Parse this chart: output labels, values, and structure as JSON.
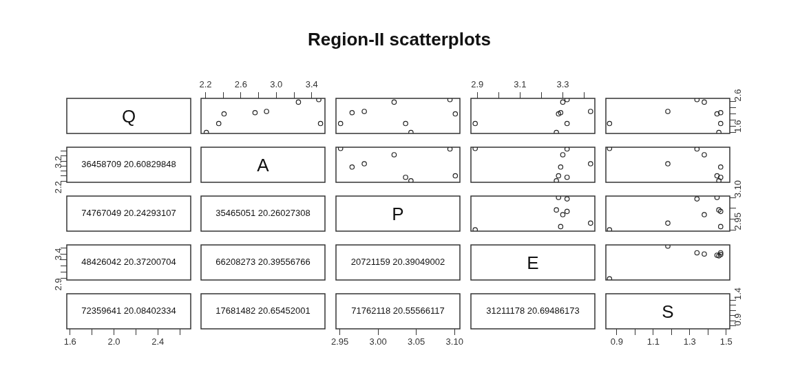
{
  "chart_data": [
    {
      "type": "other",
      "title": "Region-II scatterplots",
      "annotations": [
        "Q"
      ]
    },
    {
      "type": "scatter",
      "x": [
        2.21,
        2.35,
        2.41,
        2.76,
        2.89,
        3.25,
        3.48,
        3.5
      ],
      "values": [
        1.6,
        1.89,
        2.2,
        2.24,
        2.28,
        2.58,
        2.66,
        1.89
      ],
      "color": "#222222",
      "marker": "circle",
      "xlim": [
        2.15,
        3.55
      ],
      "ylim": [
        1.57,
        2.7
      ],
      "xticks": [
        2.2,
        {
          "value": 2.4,
          "label": null
        },
        2.6,
        {
          "value": 2.8,
          "label": null
        },
        {
          "value": 3,
          "label": "3.0"
        },
        {
          "value": 3.2,
          "label": null
        },
        3.4
      ],
      "tick_labels": "x"
    },
    {
      "type": "scatter",
      "x": [
        3.043,
        3.036,
        3.101,
        2.966,
        2.982,
        3.021,
        3.094,
        2.951
      ],
      "values": [
        1.6,
        1.89,
        2.2,
        2.24,
        2.28,
        2.58,
        2.66,
        1.89
      ],
      "color": "#222222",
      "marker": "circle",
      "xlim": [
        2.945,
        3.107
      ],
      "ylim": [
        1.57,
        2.7
      ],
      "tick_labels": false
    },
    {
      "type": "scatter",
      "x": [
        3.27,
        3.32,
        3.28,
        3.29,
        3.43,
        3.3,
        3.32,
        2.89
      ],
      "values": [
        1.6,
        1.89,
        2.2,
        2.24,
        2.28,
        2.58,
        2.66,
        1.89
      ],
      "color": "#222222",
      "marker": "circle",
      "xlim": [
        2.87,
        3.45
      ],
      "ylim": [
        1.57,
        2.7
      ],
      "xticks": [
        2.9,
        {
          "value": 3,
          "label": null
        },
        3.1,
        {
          "value": 3.2,
          "label": null
        },
        3.3,
        {
          "value": 3.4,
          "label": null
        }
      ],
      "tick_labels": "x"
    },
    {
      "type": "scatter",
      "x": [
        1.46,
        1.47,
        1.45,
        1.47,
        1.18,
        1.38,
        1.34,
        0.86
      ],
      "values": [
        1.6,
        1.89,
        2.2,
        2.24,
        2.28,
        2.58,
        2.66,
        1.89
      ],
      "color": "#222222",
      "marker": "circle",
      "xlim": [
        0.84,
        1.52
      ],
      "ylim": [
        1.57,
        2.7
      ],
      "yticks": [
        1.6,
        {
          "value": 1.8,
          "label": null
        },
        {
          "value": 2,
          "label": null
        },
        {
          "value": 2.2,
          "label": null
        },
        {
          "value": 2.4,
          "label": null
        },
        2.6
      ],
      "tick_labels": "y"
    },
    {
      "type": "scatter",
      "x": [
        null
      ],
      "values": [
        null
      ],
      "color": "#222222",
      "annotations": [
        "36458709 20.60829848"
      ],
      "xlim": [
        1.57,
        2.7
      ],
      "ylim": [
        2.15,
        3.55
      ],
      "yticks": [
        2.2,
        {
          "value": 2.4,
          "label": null
        },
        {
          "value": 2.6,
          "label": null
        },
        {
          "value": 2.8,
          "label": null
        },
        {
          "value": 3,
          "label": null
        },
        3.2,
        {
          "value": 3.4,
          "label": null
        }
      ],
      "tick_labels": "y"
    },
    {
      "type": "other",
      "annotations": [
        "A"
      ]
    },
    {
      "type": "scatter",
      "x": [
        3.043,
        3.036,
        3.101,
        2.966,
        2.982,
        3.021,
        3.094,
        2.951
      ],
      "values": [
        2.21,
        2.35,
        2.41,
        2.76,
        2.89,
        3.25,
        3.48,
        3.5
      ],
      "color": "#222222",
      "marker": "circle",
      "xlim": [
        2.945,
        3.107
      ],
      "ylim": [
        2.15,
        3.55
      ],
      "tick_labels": false
    },
    {
      "type": "scatter",
      "x": [
        3.27,
        3.32,
        3.28,
        3.29,
        3.43,
        3.3,
        3.32,
        2.89
      ],
      "values": [
        2.21,
        2.35,
        2.41,
        2.76,
        2.89,
        3.25,
        3.48,
        3.5
      ],
      "color": "#222222",
      "marker": "circle",
      "xlim": [
        2.87,
        3.45
      ],
      "ylim": [
        2.15,
        3.55
      ],
      "tick_labels": false
    },
    {
      "type": "scatter",
      "x": [
        1.46,
        1.47,
        1.45,
        1.47,
        1.18,
        1.38,
        1.34,
        0.86
      ],
      "values": [
        2.21,
        2.35,
        2.41,
        2.76,
        2.89,
        3.25,
        3.48,
        3.5
      ],
      "color": "#222222",
      "marker": "circle",
      "xlim": [
        0.84,
        1.52
      ],
      "ylim": [
        2.15,
        3.55
      ],
      "tick_labels": false
    },
    {
      "type": "other",
      "annotations": [
        "74767049 20.24293107"
      ]
    },
    {
      "type": "other",
      "annotations": [
        "35465051 20.26027308"
      ]
    },
    {
      "type": "other",
      "annotations": [
        "P"
      ]
    },
    {
      "type": "scatter",
      "x": [
        3.27,
        3.32,
        3.28,
        3.29,
        3.43,
        3.3,
        3.32,
        2.89
      ],
      "values": [
        3.043,
        3.036,
        3.101,
        2.966,
        2.982,
        3.021,
        3.094,
        2.951
      ],
      "color": "#222222",
      "marker": "circle",
      "xlim": [
        2.87,
        3.45
      ],
      "ylim": [
        2.945,
        3.107
      ],
      "tick_labels": false
    },
    {
      "type": "scatter",
      "x": [
        1.46,
        1.47,
        1.45,
        1.47,
        1.18,
        1.38,
        1.34,
        0.86
      ],
      "values": [
        3.043,
        3.036,
        3.101,
        2.966,
        2.982,
        3.021,
        3.094,
        2.951
      ],
      "color": "#222222",
      "marker": "circle",
      "xlim": [
        0.84,
        1.52
      ],
      "ylim": [
        2.945,
        3.107
      ],
      "yticks": [
        2.95,
        {
          "value": 3,
          "label": null
        },
        {
          "value": 3.05,
          "label": null
        },
        {
          "value": 3.1,
          "label": "3.10"
        }
      ],
      "tick_labels": "y"
    },
    {
      "type": "scatter",
      "x": [
        null
      ],
      "values": [
        null
      ],
      "color": "#222222",
      "annotations": [
        "48426042 20.37200704"
      ],
      "xlim": [
        1.57,
        2.7
      ],
      "ylim": [
        2.87,
        3.45
      ],
      "yticks": [
        2.9,
        {
          "value": 3,
          "label": null
        },
        {
          "value": 3.1,
          "label": null
        },
        {
          "value": 3.2,
          "label": null
        },
        {
          "value": 3.3,
          "label": null
        },
        3.4
      ],
      "tick_labels": "y"
    },
    {
      "type": "other",
      "annotations": [
        "66208273 20.39556766"
      ]
    },
    {
      "type": "other",
      "annotations": [
        "20721159 20.39049002"
      ]
    },
    {
      "type": "other",
      "annotations": [
        "E"
      ]
    },
    {
      "type": "scatter",
      "x": [
        1.46,
        1.47,
        1.45,
        1.47,
        1.18,
        1.38,
        1.34,
        0.86
      ],
      "values": [
        3.27,
        3.32,
        3.28,
        3.29,
        3.43,
        3.3,
        3.32,
        2.89
      ],
      "color": "#222222",
      "marker": "circle",
      "xlim": [
        0.84,
        1.52
      ],
      "ylim": [
        2.87,
        3.45
      ],
      "tick_labels": false
    },
    {
      "type": "scatter",
      "x": [
        null
      ],
      "values": [
        null
      ],
      "color": "#222222",
      "annotations": [
        "72359641 20.08402334"
      ],
      "xlim": [
        1.57,
        2.7
      ],
      "ylim": [
        0.84,
        1.52
      ],
      "xticks": [
        1.6,
        {
          "value": 1.8,
          "label": null
        },
        {
          "value": 2,
          "label": "2.0"
        },
        {
          "value": 2.2,
          "label": null
        },
        2.4,
        {
          "value": 2.6,
          "label": null
        }
      ],
      "tick_labels": "x"
    },
    {
      "type": "other",
      "annotations": [
        "17681482 20.65452001"
      ]
    },
    {
      "type": "scatter",
      "x": [
        null
      ],
      "values": [
        null
      ],
      "color": "#222222",
      "annotations": [
        "71762118 20.55566117"
      ],
      "xlim": [
        2.945,
        3.107
      ],
      "ylim": [
        0.84,
        1.52
      ],
      "xticks": [
        2.95,
        {
          "value": 3,
          "label": "3.00"
        },
        3.05,
        {
          "value": 3.1,
          "label": "3.10"
        }
      ],
      "tick_labels": "x"
    },
    {
      "type": "other",
      "annotations": [
        "31211178 20.69486173"
      ]
    },
    {
      "type": "scatter",
      "x": [
        null
      ],
      "values": [
        null
      ],
      "color": "#222222",
      "annotations": [
        "S"
      ],
      "xlim": [
        0.84,
        1.52
      ],
      "ylim": [
        0.84,
        1.52
      ],
      "xticks": [
        0.9,
        {
          "value": 1,
          "label": null
        },
        1.1,
        {
          "value": 1.2,
          "label": null
        },
        1.3,
        {
          "value": 1.4,
          "label": null
        },
        1.5
      ],
      "yticks": [
        0.9,
        {
          "value": 1,
          "label": null
        },
        {
          "value": 1.1,
          "label": null
        },
        {
          "value": 1.2,
          "label": null
        },
        {
          "value": 1.3,
          "label": null
        },
        1.4
      ]
    }
  ]
}
